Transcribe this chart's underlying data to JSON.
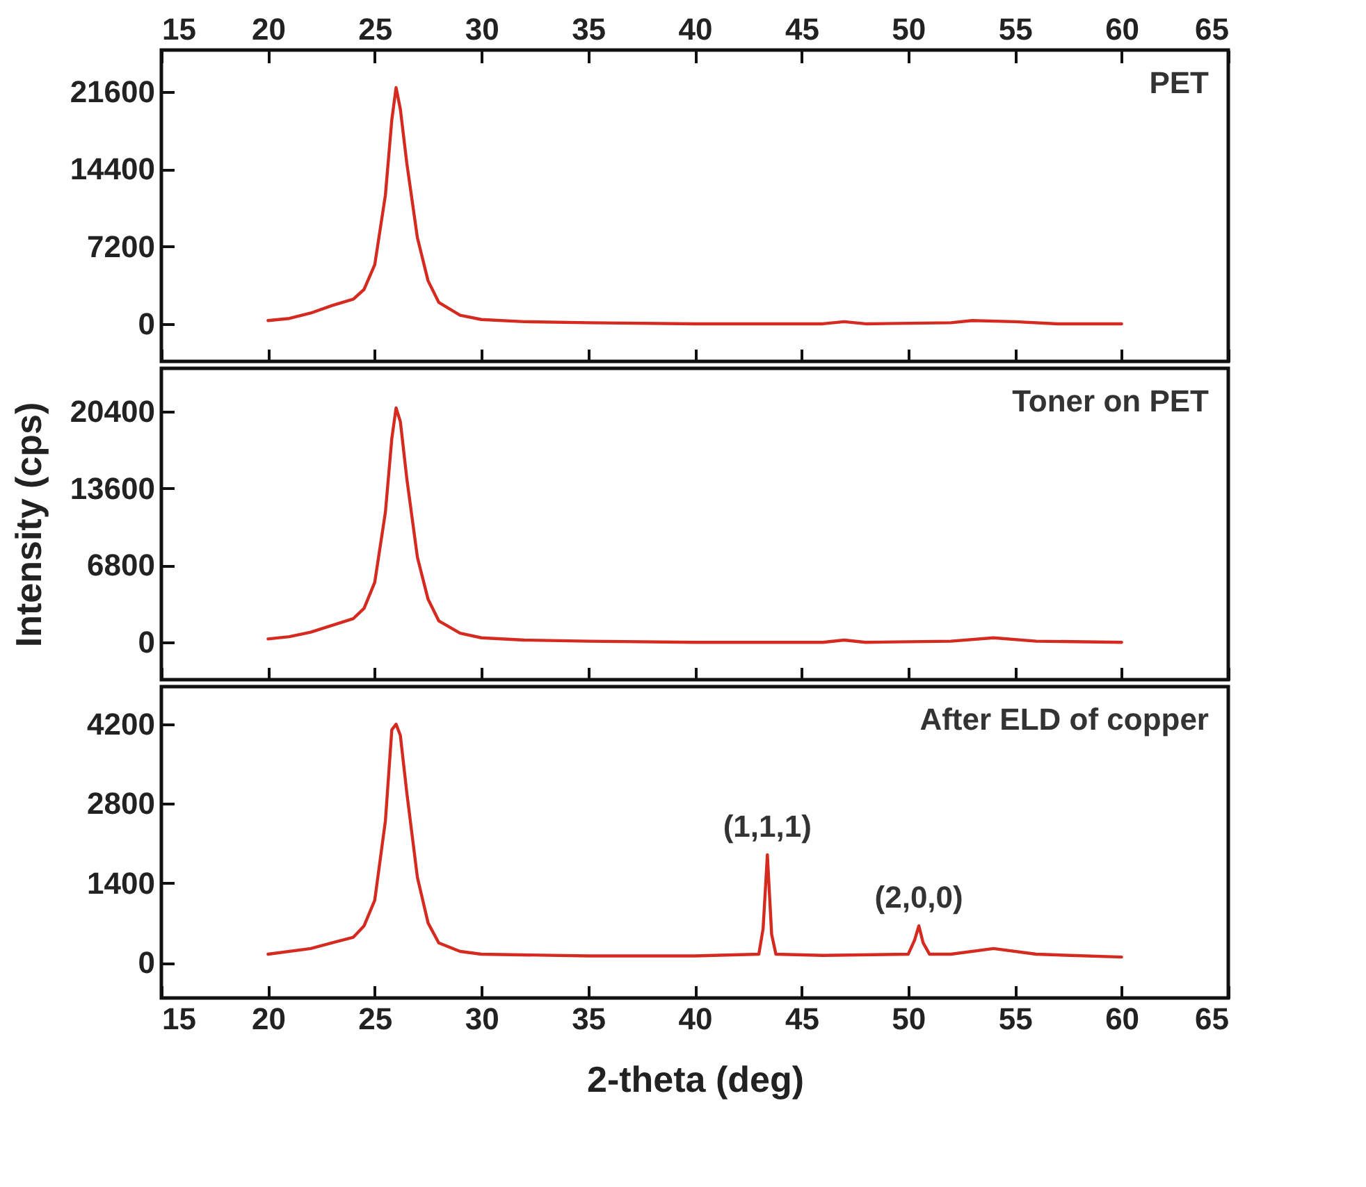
{
  "chart_data": [
    {
      "type": "line",
      "annotations": [
        "PET"
      ],
      "xlim": [
        15,
        65
      ],
      "xticks": [
        15,
        20,
        25,
        30,
        35,
        40,
        45,
        50,
        55,
        60,
        65
      ],
      "x2lim": [
        15,
        65
      ],
      "x2ticks": [
        15,
        20,
        25,
        30,
        35,
        40,
        45,
        50,
        55,
        60,
        65
      ],
      "ylim": [
        -3500,
        25500
      ],
      "yticks": [
        0,
        7200,
        14400,
        21600
      ],
      "tick_labels": "y",
      "series": [
        {
          "color": "#d42a20",
          "x": [
            20,
            21,
            22,
            23,
            24,
            24.5,
            25,
            25.5,
            25.8,
            26,
            26.2,
            26.5,
            27,
            27.5,
            28,
            29,
            30,
            32,
            35,
            40,
            46,
            47,
            48,
            52,
            53,
            55,
            57,
            60
          ],
          "values": [
            300,
            500,
            1000,
            1700,
            2300,
            3200,
            5500,
            12000,
            19000,
            22000,
            20000,
            15000,
            8000,
            4000,
            2000,
            800,
            400,
            200,
            100,
            0,
            0,
            200,
            0,
            100,
            300,
            200,
            0,
            0
          ]
        }
      ]
    },
    {
      "type": "line",
      "annotations": [
        "Toner on PET"
      ],
      "xlim": [
        15,
        65
      ],
      "xticks": [
        15,
        20,
        25,
        30,
        35,
        40,
        45,
        50,
        55,
        60,
        65
      ],
      "ylim": [
        -3300,
        24200
      ],
      "yticks": [
        0,
        6800,
        13600,
        20400
      ],
      "ylabel": "Intensity (cps)",
      "tick_labels": "y",
      "series": [
        {
          "color": "#d42a20",
          "x": [
            20,
            21,
            22,
            23,
            24,
            24.5,
            25,
            25.5,
            25.8,
            26,
            26.2,
            26.5,
            27,
            27.5,
            28,
            29,
            30,
            32,
            35,
            40,
            46,
            47,
            48,
            52,
            54,
            56,
            60
          ],
          "values": [
            300,
            500,
            900,
            1500,
            2100,
            3000,
            5300,
            11500,
            18000,
            20700,
            19500,
            14500,
            7500,
            3800,
            1900,
            800,
            400,
            200,
            100,
            0,
            0,
            200,
            0,
            100,
            400,
            100,
            0
          ]
        }
      ]
    },
    {
      "type": "line",
      "annotations": [
        "After ELD of copper",
        {
          "text": "(1,1,1)",
          "x": 43.4,
          "y": 1900
        },
        {
          "text": "(2,0,0)",
          "x": 50.5,
          "y": 650
        }
      ],
      "xlim": [
        15,
        65
      ],
      "xticks": [
        15,
        20,
        25,
        30,
        35,
        40,
        45,
        50,
        55,
        60,
        65
      ],
      "ylim": [
        -620,
        4860
      ],
      "yticks": [
        0,
        1400,
        2800,
        4200
      ],
      "xlabel": "2-theta (deg)",
      "series": [
        {
          "color": "#d42a20",
          "x": [
            20,
            22,
            23,
            24,
            24.5,
            25,
            25.5,
            25.8,
            26,
            26.2,
            26.5,
            27,
            27.5,
            28,
            29,
            30,
            35,
            40,
            43,
            43.2,
            43.4,
            43.6,
            43.8,
            46,
            50,
            50.3,
            50.5,
            50.7,
            51,
            52,
            54,
            56,
            60
          ],
          "values": [
            150,
            250,
            350,
            450,
            650,
            1100,
            2500,
            4100,
            4200,
            4000,
            3000,
            1500,
            700,
            350,
            200,
            150,
            120,
            120,
            150,
            600,
            1900,
            500,
            150,
            130,
            150,
            400,
            650,
            350,
            150,
            150,
            250,
            150,
            100
          ]
        }
      ]
    }
  ]
}
